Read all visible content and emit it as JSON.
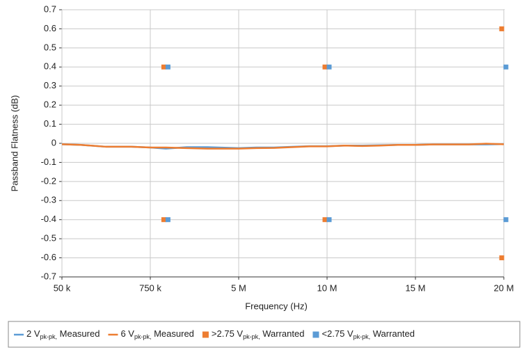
{
  "chart_data": {
    "type": "line",
    "x_label": "Frequency (Hz)",
    "y_label": "Passband Flatness (dB)",
    "xlim": [
      50000,
      20000000
    ],
    "xticks": [
      {
        "value": 50000,
        "label": "50 k"
      },
      {
        "value": 750000,
        "label": "750 k"
      },
      {
        "value": 5000000,
        "label": "5 M"
      },
      {
        "value": 10000000,
        "label": "10 M"
      },
      {
        "value": 15000000,
        "label": "15 M"
      },
      {
        "value": 20000000,
        "label": "20 M"
      }
    ],
    "ylim": [
      -0.7,
      0.7
    ],
    "yticks": [
      0.7,
      0.6,
      0.5,
      0.4,
      0.3,
      0.2,
      0.1,
      0,
      -0.1,
      -0.2,
      -0.3,
      -0.4,
      -0.5,
      -0.6,
      -0.7
    ],
    "grid": true,
    "series": [
      {
        "name": "2 Vpk-pk, Measured",
        "type": "line",
        "color": "#5b9bd5",
        "x": [
          50000,
          200000,
          400000,
          600000,
          750000,
          1500000,
          2500000,
          3500000,
          5000000,
          6000000,
          7000000,
          8000000,
          9000000,
          10000000,
          11000000,
          12000000,
          13000000,
          14000000,
          15000000,
          16000000,
          17000000,
          18000000,
          19000000,
          20000000
        ],
        "values": [
          -0.005,
          -0.008,
          -0.018,
          -0.018,
          -0.022,
          -0.028,
          -0.02,
          -0.02,
          -0.025,
          -0.022,
          -0.022,
          -0.018,
          -0.015,
          -0.015,
          -0.012,
          -0.012,
          -0.01,
          -0.008,
          -0.008,
          -0.006,
          -0.006,
          -0.006,
          -0.006,
          -0.004
        ]
      },
      {
        "name": "6 Vpk-pk, Measured",
        "type": "line",
        "color": "#ed7d31",
        "x": [
          50000,
          200000,
          400000,
          600000,
          750000,
          1500000,
          2500000,
          3500000,
          5000000,
          6000000,
          7000000,
          8000000,
          9000000,
          10000000,
          11000000,
          12000000,
          13000000,
          14000000,
          15000000,
          16000000,
          17000000,
          18000000,
          19000000,
          20000000
        ],
        "values": [
          -0.005,
          -0.008,
          -0.018,
          -0.018,
          -0.022,
          -0.022,
          -0.025,
          -0.028,
          -0.028,
          -0.025,
          -0.024,
          -0.02,
          -0.016,
          -0.016,
          -0.012,
          -0.014,
          -0.012,
          -0.008,
          -0.008,
          -0.006,
          -0.006,
          -0.006,
          -0.002,
          -0.005
        ]
      },
      {
        "name": ">2.75 Vpk-pk, Warranted",
        "type": "scatter",
        "color": "#ed7d31",
        "x": [
          1500000,
          10000000,
          20000000,
          1500000,
          10000000,
          20000000
        ],
        "values": [
          0.4,
          0.4,
          0.6,
          -0.4,
          -0.4,
          -0.6
        ]
      },
      {
        "name": "<2.75 Vpk-pk, Warranted",
        "type": "scatter",
        "color": "#5b9bd5",
        "x": [
          1500000,
          10000000,
          20000000,
          1500000,
          10000000,
          20000000
        ],
        "values": [
          0.4,
          0.4,
          0.4,
          -0.4,
          -0.4,
          -0.4
        ]
      }
    ]
  }
}
